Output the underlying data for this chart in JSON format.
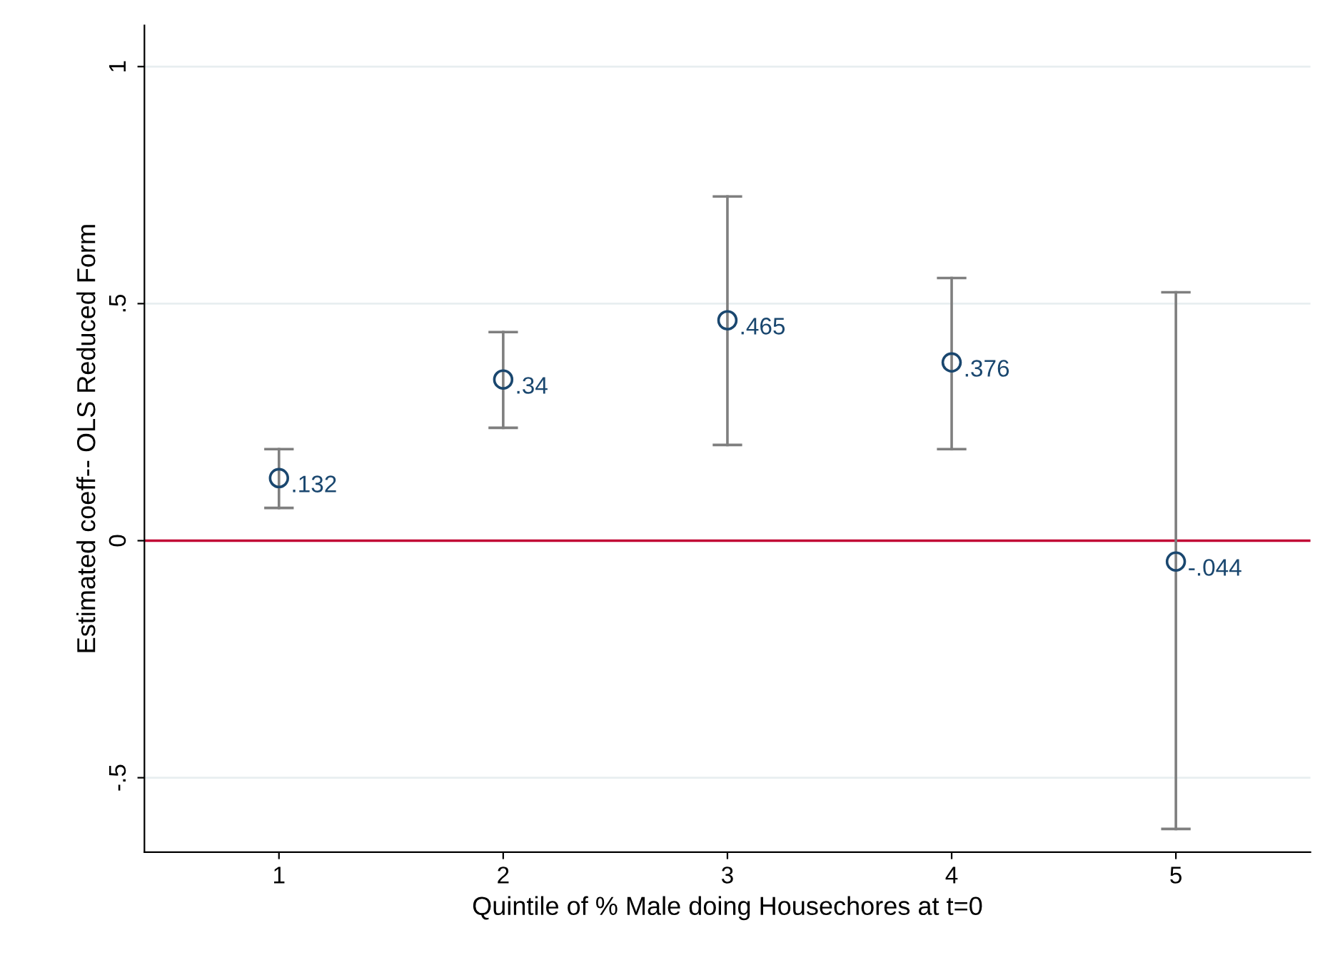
{
  "chart_data": {
    "type": "scatter",
    "xlabel": "Quintile of % Male doing Housechores at t=0",
    "ylabel": "Estimated coeff-- OLS Reduced Form",
    "x": [
      1,
      2,
      3,
      4,
      5
    ],
    "values": [
      0.132,
      0.34,
      0.465,
      0.376,
      -0.044
    ],
    "value_labels": [
      ".132",
      ".34",
      ".465",
      ".376",
      "-.044"
    ],
    "errors": [
      [
        0.069,
        0.193
      ],
      [
        0.238,
        0.44
      ],
      [
        0.202,
        0.726
      ],
      [
        0.193,
        0.554
      ],
      [
        -0.608,
        0.524
      ]
    ],
    "color": "#1a476f",
    "marker": "circle",
    "xlim": [
      0.4,
      5.6
    ],
    "xticks": [
      1,
      2,
      3,
      4,
      5
    ],
    "ylim": [
      -0.657,
      1.087
    ],
    "yticks": [
      {
        "value": -0.5,
        "label": "-.5"
      },
      0,
      {
        "value": 0.5,
        "label": ".5"
      },
      1
    ],
    "ref_lines": [
      {
        "axis": "y",
        "value": 0,
        "color": "#c10534"
      }
    ],
    "grid": "y",
    "legend": false
  }
}
